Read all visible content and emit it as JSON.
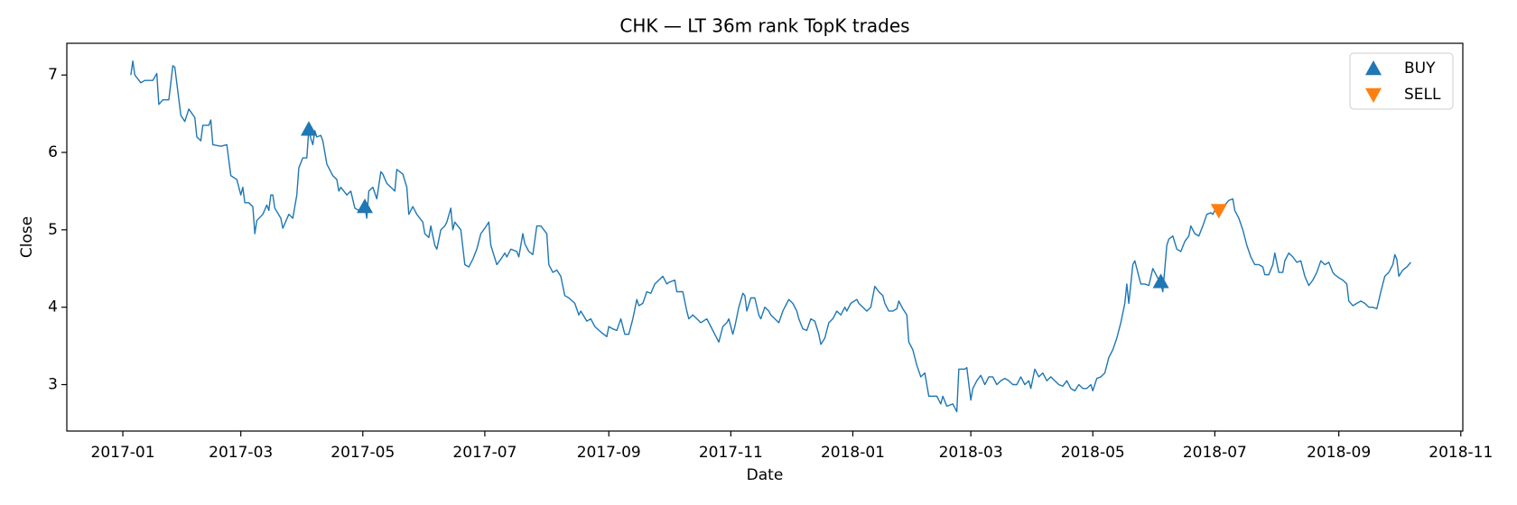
{
  "chart_data": {
    "type": "line",
    "title": "CHK — LT 36m rank TopK trades",
    "x_label": "Date",
    "y_label": "Close",
    "color": "#1f77b4",
    "x": [
      "2017-01-05",
      "2017-01-06",
      "2017-01-07",
      "2017-01-10",
      "2017-01-12",
      "2017-01-16",
      "2017-01-18",
      "2017-01-19",
      "2017-01-21",
      "2017-01-24",
      "2017-01-26",
      "2017-01-27",
      "2017-01-30",
      "2017-02-01",
      "2017-02-03",
      "2017-02-06",
      "2017-02-07",
      "2017-02-09",
      "2017-02-10",
      "2017-02-13",
      "2017-02-14",
      "2017-02-15",
      "2017-02-19",
      "2017-02-22",
      "2017-02-24",
      "2017-02-27",
      "2017-03-01",
      "2017-03-02",
      "2017-03-03",
      "2017-03-05",
      "2017-03-07",
      "2017-03-08",
      "2017-03-09",
      "2017-03-12",
      "2017-03-14",
      "2017-03-15",
      "2017-03-16",
      "2017-03-17",
      "2017-03-18",
      "2017-03-21",
      "2017-03-22",
      "2017-03-25",
      "2017-03-27",
      "2017-03-29",
      "2017-03-30",
      "2017-04-01",
      "2017-04-03",
      "2017-04-04",
      "2017-04-05",
      "2017-04-06",
      "2017-04-07",
      "2017-04-08",
      "2017-04-10",
      "2017-04-11",
      "2017-04-13",
      "2017-04-16",
      "2017-04-18",
      "2017-04-19",
      "2017-04-20",
      "2017-04-23",
      "2017-04-25",
      "2017-04-27",
      "2017-04-29",
      "2017-05-01",
      "2017-05-02",
      "2017-05-03",
      "2017-05-04",
      "2017-05-06",
      "2017-05-08",
      "2017-05-10",
      "2017-05-11",
      "2017-05-13",
      "2017-05-15",
      "2017-05-17",
      "2017-05-18",
      "2017-05-21",
      "2017-05-23",
      "2017-05-24",
      "2017-05-26",
      "2017-05-28",
      "2017-05-31",
      "2017-06-01",
      "2017-06-03",
      "2017-06-04",
      "2017-06-06",
      "2017-06-07",
      "2017-06-09",
      "2017-06-11",
      "2017-06-12",
      "2017-06-14",
      "2017-06-15",
      "2017-06-16",
      "2017-06-19",
      "2017-06-21",
      "2017-06-23",
      "2017-06-25",
      "2017-06-27",
      "2017-06-29",
      "2017-07-01",
      "2017-07-03",
      "2017-07-04",
      "2017-07-07",
      "2017-07-09",
      "2017-07-11",
      "2017-07-12",
      "2017-07-14",
      "2017-07-17",
      "2017-07-18",
      "2017-07-20",
      "2017-07-21",
      "2017-07-23",
      "2017-07-25",
      "2017-07-27",
      "2017-07-29",
      "2017-08-01",
      "2017-08-02",
      "2017-08-04",
      "2017-08-06",
      "2017-08-08",
      "2017-08-10",
      "2017-08-12",
      "2017-08-15",
      "2017-08-17",
      "2017-08-18",
      "2017-08-21",
      "2017-08-23",
      "2017-08-25",
      "2017-08-28",
      "2017-08-31",
      "2017-09-01",
      "2017-09-03",
      "2017-09-05",
      "2017-09-07",
      "2017-09-09",
      "2017-09-11",
      "2017-09-13",
      "2017-09-15",
      "2017-09-16",
      "2017-09-18",
      "2017-09-20",
      "2017-09-22",
      "2017-09-24",
      "2017-09-26",
      "2017-09-28",
      "2017-09-30",
      "2017-10-01",
      "2017-10-04",
      "2017-10-05",
      "2017-10-08",
      "2017-10-10",
      "2017-10-11",
      "2017-10-13",
      "2017-10-15",
      "2017-10-17",
      "2017-10-20",
      "2017-10-22",
      "2017-10-25",
      "2017-10-26",
      "2017-10-28",
      "2017-10-30",
      "2017-10-31",
      "2017-11-02",
      "2017-11-03",
      "2017-11-05",
      "2017-11-07",
      "2017-11-08",
      "2017-11-09",
      "2017-11-11",
      "2017-11-13",
      "2017-11-15",
      "2017-11-16",
      "2017-11-18",
      "2017-11-20",
      "2017-11-21",
      "2017-11-23",
      "2017-11-25",
      "2017-11-27",
      "2017-11-29",
      "2017-11-30",
      "2017-12-02",
      "2017-12-04",
      "2017-12-05",
      "2017-12-07",
      "2017-12-09",
      "2017-12-11",
      "2017-12-13",
      "2017-12-15",
      "2017-12-16",
      "2017-12-18",
      "2017-12-20",
      "2017-12-22",
      "2017-12-24",
      "2017-12-26",
      "2017-12-28",
      "2017-12-29",
      "2017-12-31",
      "2018-01-03",
      "2018-01-04",
      "2018-01-06",
      "2018-01-08",
      "2018-01-10",
      "2018-01-12",
      "2018-01-14",
      "2018-01-16",
      "2018-01-17",
      "2018-01-19",
      "2018-01-21",
      "2018-01-23",
      "2018-01-24",
      "2018-01-26",
      "2018-01-28",
      "2018-01-29",
      "2018-01-31",
      "2018-02-02",
      "2018-02-04",
      "2018-02-06",
      "2018-02-08",
      "2018-02-10",
      "2018-02-12",
      "2018-02-14",
      "2018-02-15",
      "2018-02-17",
      "2018-02-20",
      "2018-02-22",
      "2018-02-23",
      "2018-02-26",
      "2018-02-27",
      "2018-03-01",
      "2018-03-02",
      "2018-03-04",
      "2018-03-06",
      "2018-03-08",
      "2018-03-10",
      "2018-03-12",
      "2018-03-14",
      "2018-03-16",
      "2018-03-18",
      "2018-03-20",
      "2018-03-22",
      "2018-03-24",
      "2018-03-26",
      "2018-03-28",
      "2018-03-30",
      "2018-03-31",
      "2018-04-02",
      "2018-04-04",
      "2018-04-06",
      "2018-04-08",
      "2018-04-10",
      "2018-04-12",
      "2018-04-14",
      "2018-04-16",
      "2018-04-18",
      "2018-04-20",
      "2018-04-22",
      "2018-04-24",
      "2018-04-26",
      "2018-04-28",
      "2018-04-30",
      "2018-05-01",
      "2018-05-03",
      "2018-05-05",
      "2018-05-07",
      "2018-05-09",
      "2018-05-11",
      "2018-05-13",
      "2018-05-15",
      "2018-05-17",
      "2018-05-18",
      "2018-05-19",
      "2018-05-21",
      "2018-05-22",
      "2018-05-23",
      "2018-05-25",
      "2018-05-27",
      "2018-05-29",
      "2018-05-31",
      "2018-06-01",
      "2018-06-02",
      "2018-06-04",
      "2018-06-05",
      "2018-06-07",
      "2018-06-08",
      "2018-06-10",
      "2018-06-12",
      "2018-06-14",
      "2018-06-16",
      "2018-06-18",
      "2018-06-19",
      "2018-06-21",
      "2018-06-23",
      "2018-06-25",
      "2018-06-27",
      "2018-06-29",
      "2018-06-30",
      "2018-07-02",
      "2018-07-04",
      "2018-07-06",
      "2018-07-08",
      "2018-07-10",
      "2018-07-11",
      "2018-07-13",
      "2018-07-15",
      "2018-07-17",
      "2018-07-19",
      "2018-07-21",
      "2018-07-23",
      "2018-07-25",
      "2018-07-26",
      "2018-07-28",
      "2018-07-30",
      "2018-07-31",
      "2018-08-02",
      "2018-08-04",
      "2018-08-05",
      "2018-08-07",
      "2018-08-09",
      "2018-08-11",
      "2018-08-13",
      "2018-08-15",
      "2018-08-17",
      "2018-08-19",
      "2018-08-21",
      "2018-08-23",
      "2018-08-25",
      "2018-08-27",
      "2018-08-29",
      "2018-08-30",
      "2018-09-01",
      "2018-09-03",
      "2018-09-05",
      "2018-09-06",
      "2018-09-08",
      "2018-09-10",
      "2018-09-12",
      "2018-09-14",
      "2018-09-16",
      "2018-09-18",
      "2018-09-20",
      "2018-09-22",
      "2018-09-24",
      "2018-09-26",
      "2018-09-28",
      "2018-09-29",
      "2018-09-30",
      "2018-10-01",
      "2018-10-03",
      "2018-10-05",
      "2018-10-07"
    ],
    "values": [
      7.0,
      7.18,
      7.0,
      6.9,
      6.93,
      6.93,
      7.02,
      6.62,
      6.68,
      6.68,
      7.12,
      7.1,
      6.48,
      6.4,
      6.56,
      6.45,
      6.2,
      6.15,
      6.35,
      6.35,
      6.42,
      6.1,
      6.08,
      6.1,
      5.7,
      5.65,
      5.45,
      5.55,
      5.35,
      5.35,
      5.3,
      4.95,
      5.12,
      5.2,
      5.32,
      5.25,
      5.45,
      5.45,
      5.28,
      5.15,
      5.02,
      5.2,
      5.15,
      5.45,
      5.8,
      5.93,
      5.93,
      6.3,
      6.18,
      6.1,
      6.28,
      6.2,
      6.22,
      6.15,
      5.85,
      5.7,
      5.65,
      5.5,
      5.55,
      5.45,
      5.5,
      5.28,
      5.25,
      5.32,
      5.3,
      5.15,
      5.5,
      5.55,
      5.4,
      5.75,
      5.72,
      5.6,
      5.55,
      5.5,
      5.78,
      5.72,
      5.55,
      5.2,
      5.3,
      5.2,
      5.1,
      4.95,
      4.9,
      5.05,
      4.8,
      4.75,
      5.0,
      5.05,
      5.1,
      5.28,
      5.0,
      5.1,
      5.0,
      4.55,
      4.52,
      4.62,
      4.75,
      4.95,
      5.02,
      5.1,
      4.8,
      4.55,
      4.62,
      4.7,
      4.65,
      4.75,
      4.72,
      4.65,
      4.95,
      4.82,
      4.72,
      4.68,
      5.05,
      5.05,
      4.95,
      4.55,
      4.45,
      4.48,
      4.4,
      4.15,
      4.12,
      4.05,
      3.9,
      3.95,
      3.82,
      3.85,
      3.75,
      3.68,
      3.62,
      3.75,
      3.72,
      3.7,
      3.85,
      3.65,
      3.65,
      3.85,
      4.1,
      4.02,
      4.05,
      4.2,
      4.18,
      4.3,
      4.35,
      4.4,
      4.3,
      4.32,
      4.35,
      4.2,
      4.2,
      3.95,
      3.85,
      3.9,
      3.85,
      3.8,
      3.85,
      3.75,
      3.6,
      3.55,
      3.75,
      3.8,
      3.85,
      3.65,
      3.75,
      4.0,
      4.18,
      4.15,
      3.95,
      4.12,
      4.12,
      3.9,
      3.85,
      4.0,
      3.95,
      3.9,
      3.85,
      3.8,
      3.95,
      4.05,
      4.1,
      4.05,
      3.95,
      3.85,
      3.72,
      3.7,
      3.85,
      3.82,
      3.65,
      3.52,
      3.6,
      3.8,
      3.85,
      3.95,
      3.9,
      4.0,
      3.95,
      4.05,
      4.1,
      4.05,
      4.0,
      3.95,
      4.0,
      4.27,
      4.2,
      4.15,
      4.05,
      3.95,
      3.95,
      3.98,
      4.08,
      3.98,
      3.9,
      3.55,
      3.45,
      3.25,
      3.1,
      3.15,
      2.85,
      2.85,
      2.85,
      2.75,
      2.85,
      2.72,
      2.75,
      2.65,
      3.2,
      3.2,
      3.22,
      2.8,
      2.95,
      3.05,
      3.12,
      3.0,
      3.1,
      3.1,
      3.0,
      3.05,
      3.08,
      3.05,
      3.0,
      3.0,
      3.1,
      3.0,
      3.05,
      2.95,
      3.2,
      3.1,
      3.15,
      3.05,
      3.1,
      3.05,
      3.0,
      2.98,
      3.05,
      2.95,
      2.92,
      3.0,
      2.95,
      2.95,
      3.0,
      2.92,
      3.08,
      3.1,
      3.15,
      3.35,
      3.45,
      3.6,
      3.8,
      4.05,
      4.3,
      4.05,
      4.55,
      4.6,
      4.5,
      4.3,
      4.3,
      4.28,
      4.5,
      4.45,
      4.4,
      4.3,
      4.2,
      4.8,
      4.88,
      4.92,
      4.75,
      4.72,
      4.85,
      4.92,
      5.05,
      4.95,
      4.92,
      5.05,
      5.2,
      5.22,
      5.2,
      5.3,
      5.28,
      5.32,
      5.38,
      5.4,
      5.25,
      5.15,
      5.0,
      4.8,
      4.65,
      4.55,
      4.55,
      4.52,
      4.42,
      4.42,
      4.55,
      4.7,
      4.45,
      4.45,
      4.6,
      4.7,
      4.65,
      4.58,
      4.6,
      4.4,
      4.28,
      4.35,
      4.45,
      4.6,
      4.55,
      4.58,
      4.45,
      4.42,
      4.38,
      4.35,
      4.3,
      4.08,
      4.02,
      4.05,
      4.08,
      4.05,
      4.0,
      4.0,
      3.98,
      4.2,
      4.4,
      4.45,
      4.55,
      4.68,
      4.62,
      4.4,
      4.48,
      4.52,
      4.58
    ],
    "markers": [
      {
        "name": "BUY",
        "color": "#1f77b4",
        "shape": "triangle-up",
        "x": [
          "2017-04-04",
          "2017-05-02",
          "2018-06-04"
        ],
        "values": [
          6.3,
          5.3,
          4.33
        ]
      },
      {
        "name": "SELL",
        "color": "#ff7f0e",
        "shape": "triangle-down",
        "x": [
          "2018-07-03"
        ],
        "values": [
          5.25
        ]
      }
    ],
    "xlim": [
      "2016-12-04",
      "2018-11-02"
    ],
    "xticks": [
      "2017-01",
      "2017-03",
      "2017-05",
      "2017-07",
      "2017-09",
      "2017-11",
      "2018-01",
      "2018-03",
      "2018-05",
      "2018-07",
      "2018-09",
      "2018-11"
    ],
    "ylim": [
      2.4,
      7.41
    ],
    "yticks": [
      3,
      4,
      5,
      6,
      7
    ],
    "grid": false,
    "legend": "upper right"
  }
}
